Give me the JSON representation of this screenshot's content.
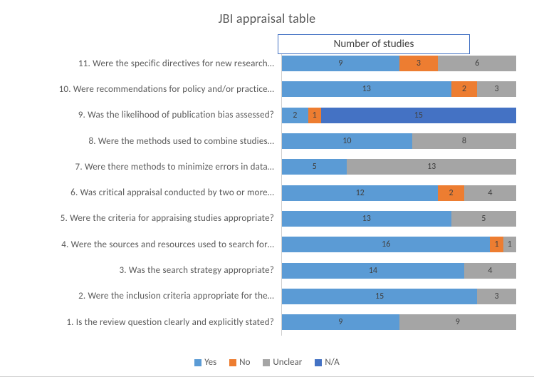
{
  "chart": {
    "type": "bar-stacked-horizontal",
    "title": "JBI appraisal table",
    "x_axis_label_box": "Number of studies",
    "background_color": "#ffffff",
    "grid_color": "#d0d0d0",
    "title_fontsize": 18,
    "label_fontsize": 13,
    "value_fontsize": 12,
    "total_per_row": 18,
    "categories": [
      "11. Were the specific directives for new research…",
      "10. Were recommendations for policy and/or practice…",
      "9. Was the likelihood of publication bias assessed?",
      "8. Were the methods used to combine studies…",
      "7. Were there methods to minimize errors in data…",
      "6. Was critical appraisal conducted by two or more…",
      "5. Were the criteria for appraising studies appropriate?",
      "4. Were the sources and resources used to search for…",
      "3. Was the search strategy appropriate?",
      "2. Were the inclusion criteria appropriate for the…",
      "1. Is the review question clearly and explicitly stated?"
    ],
    "series": [
      {
        "name": "Yes",
        "color": "#5b9bd5"
      },
      {
        "name": "No",
        "color": "#ed7d31"
      },
      {
        "name": "Unclear",
        "color": "#a5a5a5"
      },
      {
        "name": "N/A",
        "color": "#4472c4"
      }
    ],
    "data": [
      {
        "Yes": 9,
        "No": 3,
        "Unclear": 6,
        "N/A": 0
      },
      {
        "Yes": 13,
        "No": 2,
        "Unclear": 3,
        "N/A": 0
      },
      {
        "Yes": 2,
        "No": 1,
        "Unclear": 0,
        "N/A": 15
      },
      {
        "Yes": 10,
        "No": 0,
        "Unclear": 8,
        "N/A": 0
      },
      {
        "Yes": 5,
        "No": 0,
        "Unclear": 13,
        "N/A": 0
      },
      {
        "Yes": 12,
        "No": 2,
        "Unclear": 4,
        "N/A": 0
      },
      {
        "Yes": 13,
        "No": 0,
        "Unclear": 5,
        "N/A": 0
      },
      {
        "Yes": 16,
        "No": 1,
        "Unclear": 1,
        "N/A": 0
      },
      {
        "Yes": 14,
        "No": 0,
        "Unclear": 4,
        "N/A": 0
      },
      {
        "Yes": 15,
        "No": 0,
        "Unclear": 3,
        "N/A": 0
      },
      {
        "Yes": 9,
        "No": 0,
        "Unclear": 9,
        "N/A": 0
      }
    ]
  }
}
